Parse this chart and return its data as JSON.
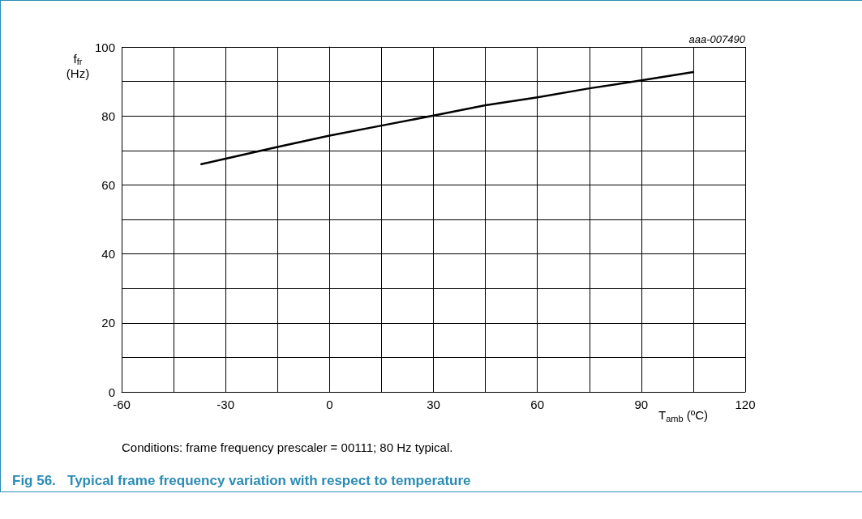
{
  "chart_data": {
    "type": "line",
    "title": "Fig 56.   Typical frame frequency variation with respect to temperature",
    "xlabel": "T$_{amb}$ (ºC)",
    "ylabel": "f$_{fr}$\n(Hz)",
    "annotations": [
      "aaa-007490",
      "Conditions: frame frequency prescaler = 00111; 80 Hz typical."
    ],
    "series": [
      {
        "color": "#000000",
        "x": [
          -37,
          -30,
          -15,
          0,
          15,
          30,
          45,
          60,
          75,
          90,
          105
        ],
        "values": [
          66.0,
          67.6,
          71.0,
          74.3,
          77.2,
          80.1,
          83.1,
          85.4,
          88.0,
          90.3,
          92.7
        ]
      }
    ],
    "xlim": [
      -60,
      120
    ],
    "xticks": [
      -60,
      {
        "value": -45,
        "label": null
      },
      -30,
      {
        "value": -15,
        "label": null
      },
      0,
      {
        "value": 15,
        "label": null
      },
      30,
      {
        "value": 45,
        "label": null
      },
      60,
      {
        "value": 75,
        "label": null
      },
      90,
      {
        "value": 105,
        "label": null
      },
      120
    ],
    "ylim": [
      0,
      100
    ],
    "yticks": [
      0,
      {
        "value": 10,
        "label": null
      },
      20,
      {
        "value": 30,
        "label": null
      },
      40,
      {
        "value": 50,
        "label": null
      },
      60,
      {
        "value": 70,
        "label": null
      },
      80,
      {
        "value": 90,
        "label": null
      },
      100
    ],
    "grid": true,
    "marker": "none",
    "line_style": "solid"
  }
}
